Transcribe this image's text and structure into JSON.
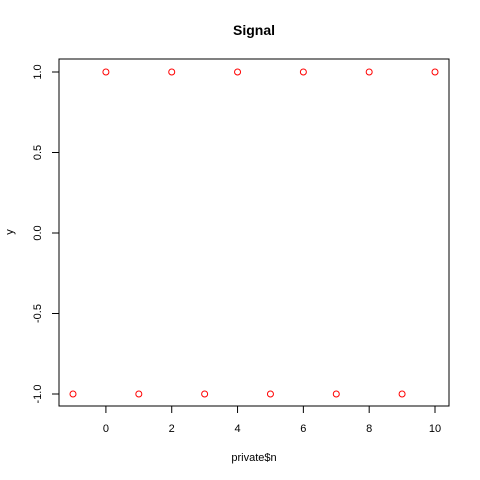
{
  "chart_data": {
    "type": "scatter",
    "title": "Signal",
    "xlabel": "private$n",
    "ylabel": "y",
    "x": [
      -1,
      0,
      1,
      2,
      3,
      4,
      5,
      6,
      7,
      8,
      9,
      10
    ],
    "series": [
      {
        "values": [
          -1,
          1,
          -1,
          1,
          -1,
          1,
          -1,
          1,
          -1,
          1,
          -1,
          1
        ],
        "color": "#ff0000",
        "marker": "open-circle"
      }
    ],
    "xlim": [
      -1,
      10
    ],
    "ylim": [
      -1,
      1
    ],
    "x_ticks": [
      "0",
      "2",
      "4",
      "6",
      "8",
      "10"
    ],
    "y_ticks": [
      "-1.0",
      "-0.5",
      "0.0",
      "0.5",
      "1.0"
    ],
    "grid": false,
    "legend": "none"
  }
}
